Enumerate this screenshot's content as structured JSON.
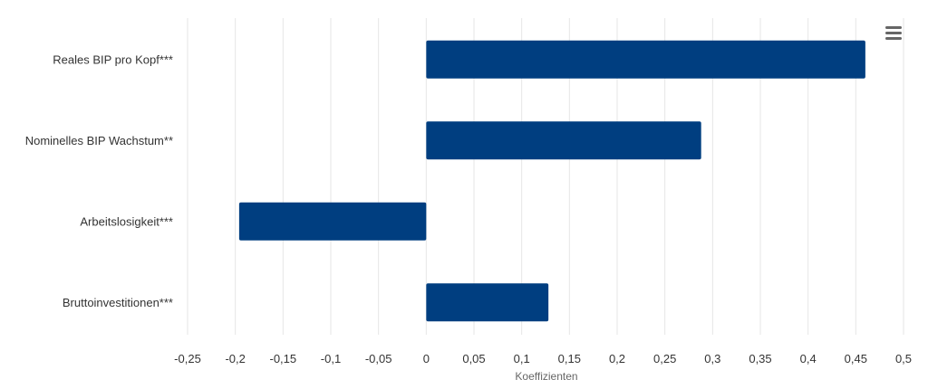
{
  "chart_data": {
    "type": "bar",
    "orientation": "horizontal",
    "categories": [
      "Reales BIP pro Kopf***",
      "Nominelles BIP Wachstum**",
      "Arbeitslosigkeit***",
      "Bruttoinvestitionen***"
    ],
    "values": [
      0.46,
      0.288,
      -0.196,
      0.128
    ],
    "xlabel": "Koeffizienten",
    "xlim": [
      -0.25,
      0.5
    ],
    "xticks": [
      -0.25,
      -0.2,
      -0.15,
      -0.1,
      -0.05,
      0,
      0.05,
      0.1,
      0.15,
      0.2,
      0.25,
      0.3,
      0.35,
      0.4,
      0.45,
      0.5
    ],
    "xtick_labels": [
      "-0,25",
      "-0,2",
      "-0,15",
      "-0,1",
      "-0,05",
      "0",
      "0,05",
      "0,1",
      "0,15",
      "0,2",
      "0,25",
      "0,3",
      "0,35",
      "0,4",
      "0,45",
      "0,5"
    ],
    "grid": true,
    "bar_color": "#003e80"
  },
  "menu": {
    "icon": "hamburger-menu-icon",
    "color": "#666666"
  }
}
